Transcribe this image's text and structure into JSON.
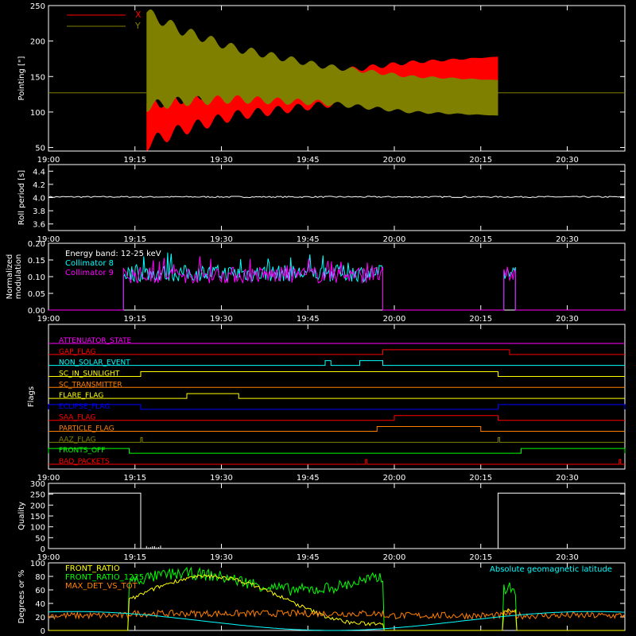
{
  "x_ticks": [
    "19:00",
    "19:15",
    "19:30",
    "19:45",
    "20:00",
    "20:15",
    "20:30"
  ],
  "colors": {
    "x": "#ff0000",
    "y": "#808000",
    "axes": "#ffffff",
    "c8": "#00ffff",
    "c9": "#ff00ff",
    "front_ratio": "#ffff00",
    "front_ratio_1225": "#00ff00",
    "max_det": "#ff8000",
    "lat": "#00ffff"
  },
  "chart_data": [
    {
      "type": "area",
      "id": "pointing",
      "ylabel": "Pointing [\"]",
      "yticks": [
        "250",
        "200",
        "150",
        "100",
        "50"
      ],
      "ylim": [
        45,
        250
      ],
      "xlim": [
        "19:00",
        "20:40"
      ],
      "legend": [
        {
          "name": "X",
          "color": "#ff0000"
        },
        {
          "name": "Y",
          "color": "#808000"
        }
      ],
      "baseline_value": 127,
      "active_range": [
        "19:17",
        "20:18"
      ],
      "series": [
        {
          "name": "X",
          "upper": [
            [
              0,
              112
            ],
            [
              0.1,
              120
            ],
            [
              0.25,
              135
            ],
            [
              0.5,
              155
            ],
            [
              0.75,
              170
            ],
            [
              1,
              178
            ]
          ],
          "lower": [
            [
              0,
              55
            ],
            [
              0.1,
              75
            ],
            [
              0.25,
              95
            ],
            [
              0.5,
              110
            ],
            [
              0.75,
              120
            ],
            [
              1,
              123
            ]
          ]
        },
        {
          "name": "Y",
          "upper": [
            [
              0,
              240
            ],
            [
              0.1,
              215
            ],
            [
              0.25,
              190
            ],
            [
              0.5,
              165
            ],
            [
              0.75,
              150
            ],
            [
              1,
              145
            ]
          ],
          "lower": [
            [
              0,
              108
            ],
            [
              0.1,
              115
            ],
            [
              0.25,
              118
            ],
            [
              0.5,
              113
            ],
            [
              0.75,
              100
            ],
            [
              1,
              95
            ]
          ]
        }
      ]
    },
    {
      "type": "line",
      "id": "roll",
      "ylabel": "Roll period [s]",
      "yticks": [
        "4.4",
        "4.2",
        "4.0",
        "3.8",
        "3.6"
      ],
      "ylim": [
        3.5,
        4.5
      ],
      "value": 4.01
    },
    {
      "type": "bar",
      "id": "modulation",
      "ylabel_lines": [
        "Normalized",
        "modulation"
      ],
      "yticks": [
        "0.20",
        "0.15",
        "0.10",
        "0.05",
        "0.00"
      ],
      "ylim": [
        0,
        0.2
      ],
      "legend_title": "Energy band: 12-25 keV",
      "series": [
        {
          "name": "Collimator 8",
          "color": "#00ffff",
          "ranges": [
            [
              "19:13",
              "19:58"
            ],
            [
              "20:19",
              "20:21"
            ]
          ],
          "mean": 0.11
        },
        {
          "name": "Collimator 9",
          "color": "#ff00ff",
          "ranges": [
            [
              "19:13",
              "19:58"
            ],
            [
              "20:19",
              "20:21"
            ]
          ],
          "mean": 0.105
        }
      ]
    },
    {
      "type": "line",
      "id": "flags",
      "ylabel": "Flags",
      "flags": [
        {
          "label": "ATTENUATOR_STATE",
          "color": "#ff00ff",
          "on": []
        },
        {
          "label": "GAP_FLAG",
          "color": "#ff0000",
          "on": [
            [
              "19:58",
              "20:20"
            ]
          ]
        },
        {
          "label": "NON_SOLAR_EVENT",
          "color": "#00ffff",
          "on": [
            [
              "19:48",
              "19:49"
            ],
            [
              "19:54",
              "19:58"
            ]
          ]
        },
        {
          "label": "SC_IN_SUNLIGHT",
          "color": "#ffff00",
          "on": [
            [
              "19:16",
              "20:18"
            ]
          ]
        },
        {
          "label": "SC_TRANSMITTER",
          "color": "#ff8000",
          "on": []
        },
        {
          "label": "FLARE_FLAG",
          "color": "#ffff00",
          "on": [
            [
              "19:24",
              "19:33"
            ]
          ]
        },
        {
          "label": "ECLIPSE_FLAG",
          "color": "#0000ff",
          "on": [
            [
              "19:00",
              "19:16"
            ],
            [
              "20:18",
              "20:40"
            ]
          ]
        },
        {
          "label": "SAA_FLAG",
          "color": "#ff0000",
          "on": [
            [
              "20:00",
              "20:18"
            ]
          ]
        },
        {
          "label": "PARTICLE_FLAG",
          "color": "#ff8000",
          "on": [
            [
              "19:57",
              "20:15"
            ]
          ]
        },
        {
          "label": "AAZ_FLAG",
          "color": "#808000",
          "on": [
            [
              "19:16",
              "19:16"
            ],
            [
              "20:18",
              "20:18"
            ]
          ]
        },
        {
          "label": "FRONTS_OFF",
          "color": "#00ff00",
          "on": [
            [
              "19:00",
              "19:14"
            ],
            [
              "20:22",
              "20:40"
            ]
          ]
        },
        {
          "label": "BAD_PACKETS",
          "color": "#ff0000",
          "on": [
            [
              "19:55",
              "19:55"
            ],
            [
              "20:39",
              "20:39"
            ]
          ]
        }
      ]
    },
    {
      "type": "line",
      "id": "quality",
      "ylabel": "Quality",
      "yticks": [
        "300",
        "250",
        "200",
        "150",
        "100",
        "50",
        "0"
      ],
      "ylim": [
        0,
        300
      ],
      "high_value": 255,
      "high_ranges": [
        [
          "19:00",
          "19:16"
        ],
        [
          "20:18",
          "20:40"
        ]
      ]
    },
    {
      "type": "line",
      "id": "ratios",
      "ylabel": "Degrees or %",
      "yticks": [
        "100",
        "80",
        "60",
        "40",
        "20",
        "0"
      ],
      "ylim": [
        0,
        100
      ],
      "annotation": "Absolute geomagnetic latitude",
      "series": [
        {
          "name": "FRONT_RATIO",
          "color": "#ffff00"
        },
        {
          "name": "FRONT_RATIO_1225",
          "color": "#00ff00"
        },
        {
          "name": "MAX_DET_VS_TOT",
          "color": "#ff8000"
        }
      ]
    }
  ]
}
